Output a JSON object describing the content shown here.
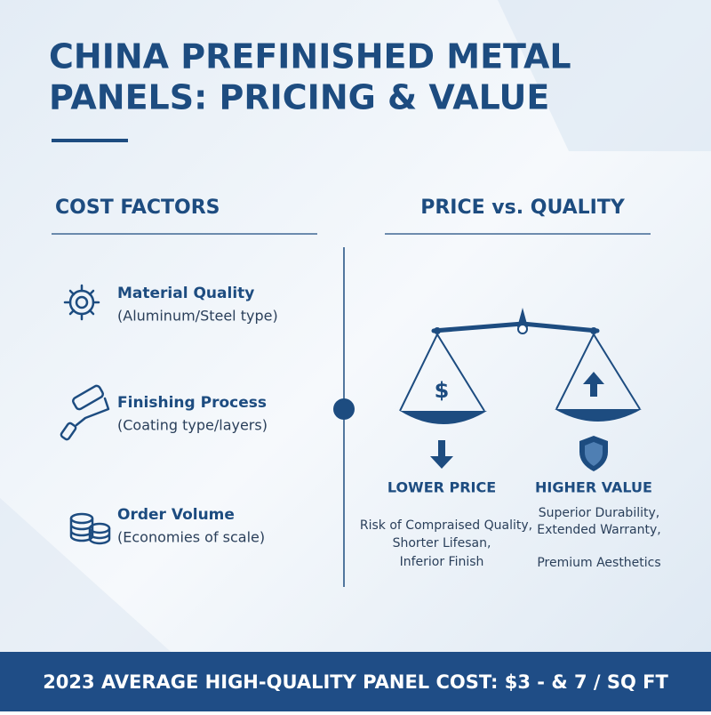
{
  "header": {
    "title_lines": [
      "CHINA PREFINISHED METAL",
      "PANELS: PRICING & VALUE"
    ]
  },
  "cost_factors": {
    "heading": "COST FACTORS",
    "items": [
      {
        "name": "Material Quality",
        "detail": "(Aluminum/Steel type)"
      },
      {
        "name": "Finishing Process",
        "detail": "(Coating type/layers)"
      },
      {
        "name": "Order Volume",
        "detail": "(Economies of scale)"
      }
    ]
  },
  "price_vs_quality": {
    "heading": "PRICE vs. QUALITY",
    "scale_symbol": "$",
    "left": {
      "label": "LOWER PRICE",
      "lines": [
        "Risk of Compraised Quality,",
        "Shorter Lifesan,",
        "Inferior Finish"
      ]
    },
    "right": {
      "label": "HIGHER VALUE",
      "lines": [
        "Superior Durability,",
        "Extended Warranty,",
        "Premium Aesthetics"
      ]
    }
  },
  "footer": {
    "text": "2023 AVERAGE HIGH-QUALITY PANEL COST: $3 - & 7 / SQ FT"
  }
}
